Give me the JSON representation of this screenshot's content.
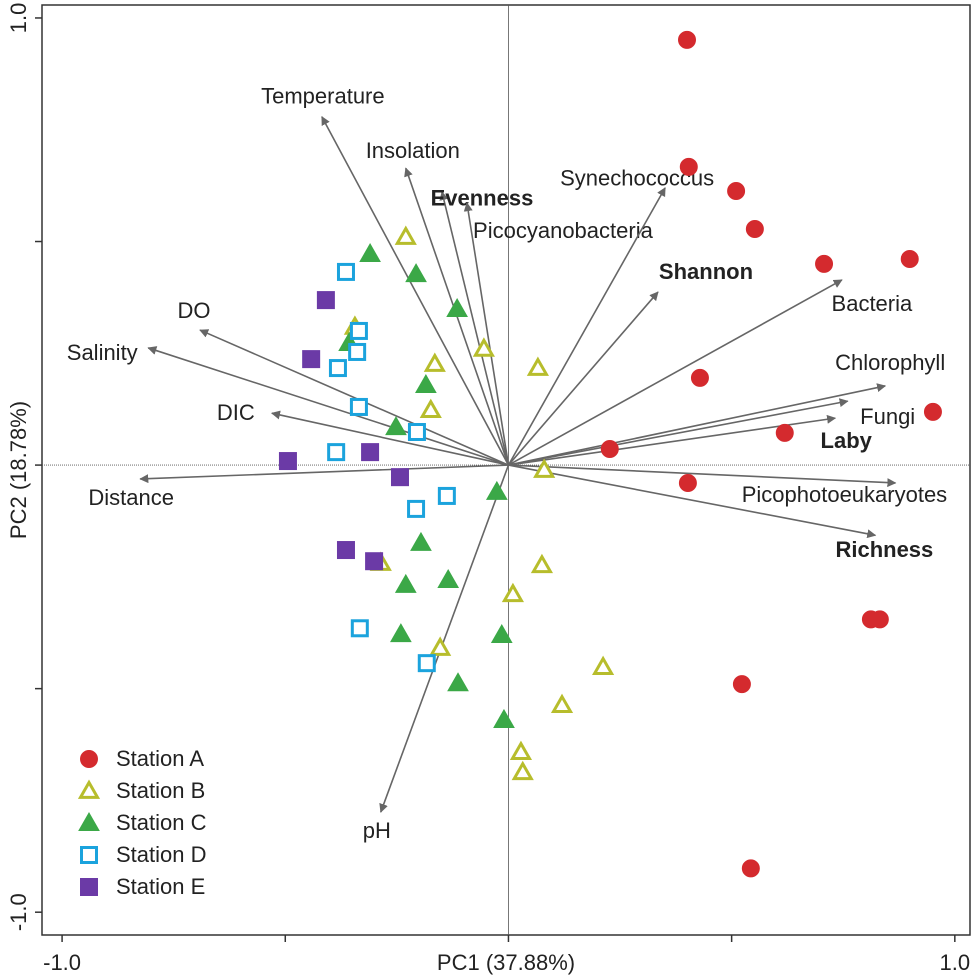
{
  "chart_data": {
    "type": "scatter",
    "xlabel": "PC1 (37.88%)",
    "ylabel": "PC2 (18.78%)",
    "xlim": [
      -1.045,
      1.034
    ],
    "ylim": [
      -1.051,
      1.029
    ],
    "xticks": [
      {
        "value": -1,
        "label": "-1.0"
      },
      {
        "value": -0.5,
        "label": null
      },
      {
        "value": 0,
        "label": null
      },
      {
        "value": 0.5,
        "label": null
      },
      {
        "value": 1,
        "label": "1.0"
      }
    ],
    "yticks": [
      {
        "value": -1,
        "label": "-1.0"
      },
      {
        "value": -0.5,
        "label": null
      },
      {
        "value": 0,
        "label": null
      },
      {
        "value": 0.5,
        "label": null
      },
      {
        "value": 1,
        "label": "1.0"
      }
    ],
    "zero_lines": true,
    "legend": "lower left",
    "series": [
      {
        "name": "Station A",
        "color": "#d42a2e",
        "marker": "circle",
        "filled": true,
        "x": [
          0.4,
          0.404,
          0.51,
          0.552,
          0.707,
          0.899,
          0.429,
          0.951,
          0.619,
          0.227,
          0.402,
          0.812,
          0.832,
          0.523,
          0.543
        ],
        "y": [
          0.951,
          0.667,
          0.613,
          0.528,
          0.45,
          0.461,
          0.195,
          0.119,
          0.072,
          0.036,
          -0.04,
          -0.345,
          -0.345,
          -0.49,
          -0.902
        ]
      },
      {
        "name": "Station B",
        "color": "#b7bd2c",
        "marker": "triangle",
        "filled": false,
        "x": [
          -0.23,
          -0.344,
          -0.055,
          0.066,
          -0.165,
          -0.174,
          0.08,
          -0.286,
          0.075,
          0.01,
          -0.153,
          0.212,
          0.12,
          0.028,
          0.032
        ],
        "y": [
          0.51,
          0.309,
          0.26,
          0.217,
          0.226,
          0.123,
          -0.011,
          -0.219,
          -0.224,
          -0.289,
          -0.409,
          -0.452,
          -0.537,
          -0.642,
          -0.687
        ]
      },
      {
        "name": "Station C",
        "color": "#3ba847",
        "marker": "triangle",
        "filled": true,
        "x": [
          -0.31,
          -0.207,
          -0.115,
          -0.357,
          -0.185,
          -0.252,
          -0.026,
          -0.196,
          -0.23,
          -0.135,
          -0.241,
          -0.015,
          -0.113,
          -0.01
        ],
        "y": [
          0.472,
          0.427,
          0.349,
          0.273,
          0.179,
          0.085,
          -0.06,
          -0.174,
          -0.268,
          -0.257,
          -0.378,
          -0.38,
          -0.488,
          -0.57
        ]
      },
      {
        "name": "Station D",
        "color": "#1ba3dd",
        "marker": "square",
        "filled": false,
        "x": [
          -0.364,
          -0.335,
          -0.339,
          -0.382,
          -0.335,
          -0.205,
          -0.386,
          -0.138,
          -0.207,
          -0.333,
          -0.183
        ],
        "y": [
          0.432,
          0.3,
          0.253,
          0.217,
          0.13,
          0.074,
          0.029,
          -0.069,
          -0.098,
          -0.365,
          -0.443
        ]
      },
      {
        "name": "Station E",
        "color": "#6b3aa6",
        "marker": "square",
        "filled": true,
        "x": [
          -0.409,
          -0.442,
          -0.31,
          -0.494,
          -0.243,
          -0.364,
          -0.301
        ],
        "y": [
          0.369,
          0.237,
          0.029,
          0.009,
          -0.027,
          -0.19,
          -0.215
        ]
      }
    ],
    "vectors": [
      {
        "label": "Temperature",
        "x": -0.418,
        "y": 0.779,
        "bold": false
      },
      {
        "label": "Insolation",
        "x": -0.23,
        "y": 0.664,
        "bold": false
      },
      {
        "label": "Evenness",
        "x": -0.149,
        "y": 0.611,
        "bold": true
      },
      {
        "label": "Picocyanobacteria",
        "x": -0.093,
        "y": 0.586,
        "bold": false
      },
      {
        "label": "Synechococcus",
        "x": 0.351,
        "y": 0.62,
        "bold": false
      },
      {
        "label": "Shannon",
        "x": 0.335,
        "y": 0.387,
        "bold": true
      },
      {
        "label": "Bacteria",
        "x": 0.747,
        "y": 0.414,
        "bold": false
      },
      {
        "label": "Chlorophyll",
        "x": 0.844,
        "y": 0.177,
        "bold": false
      },
      {
        "label": "Fungi",
        "x": 0.76,
        "y": 0.143,
        "bold": false
      },
      {
        "label": "Laby",
        "x": 0.732,
        "y": 0.105,
        "bold": true
      },
      {
        "label": "Picophotoeukaryotes",
        "x": 0.867,
        "y": -0.04,
        "bold": false
      },
      {
        "label": "Richness",
        "x": 0.822,
        "y": -0.157,
        "bold": true
      },
      {
        "label": "pH",
        "x": -0.286,
        "y": -0.776,
        "bold": false
      },
      {
        "label": "Distance",
        "x": -0.825,
        "y": -0.031,
        "bold": false
      },
      {
        "label": "DIC",
        "x": -0.53,
        "y": 0.116,
        "bold": false
      },
      {
        "label": "Salinity",
        "x": -0.807,
        "y": 0.262,
        "bold": false
      },
      {
        "label": "DO",
        "x": -0.691,
        "y": 0.302,
        "bold": false
      }
    ]
  }
}
